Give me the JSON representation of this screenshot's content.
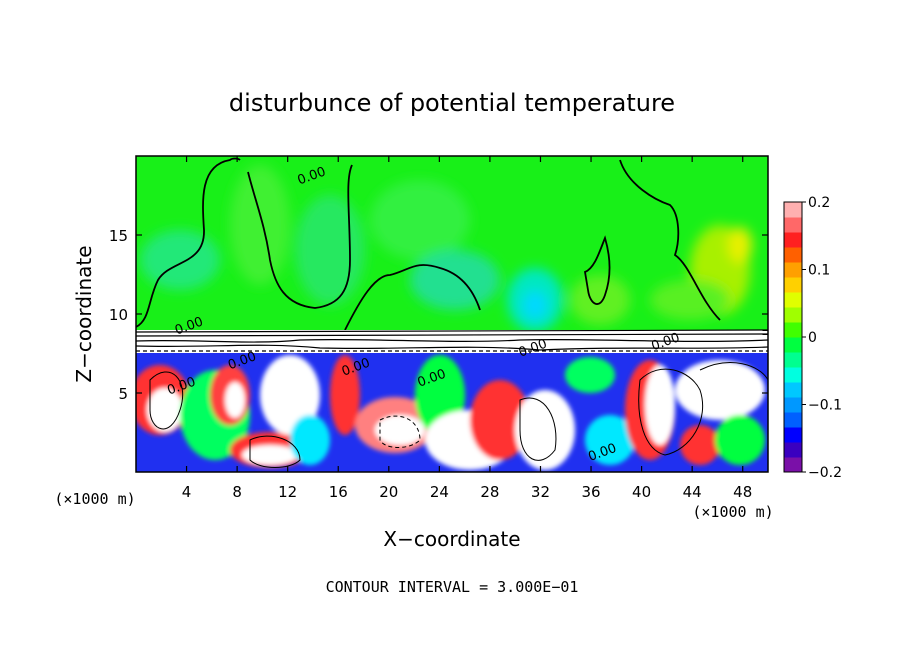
{
  "chart_data": {
    "type": "heatmap",
    "title": "disturbunce of potential temperature",
    "xlabel": "X−coordinate",
    "ylabel": "Z−coordinate",
    "x_unit_label": "(×1000 m)",
    "x_unit_label_right": "(×1000 m)",
    "footer": "CONTOUR INTERVAL = 3.000E−01",
    "xlim": [
      0,
      50
    ],
    "ylim": [
      0,
      20
    ],
    "x_ticks": [
      4,
      8,
      12,
      16,
      20,
      24,
      28,
      32,
      36,
      40,
      44,
      48
    ],
    "y_ticks": [
      5,
      10,
      15
    ],
    "contour_interval": 0.3,
    "contour_labels": [
      {
        "text": "0.00",
        "x": 14.0,
        "y": 18.5
      },
      {
        "text": "0.00",
        "x": 4.3,
        "y": 9.0
      },
      {
        "text": "0.00",
        "x": 8.5,
        "y": 6.8
      },
      {
        "text": "0.00",
        "x": 17.5,
        "y": 6.4
      },
      {
        "text": "0.00",
        "x": 3.7,
        "y": 5.2
      },
      {
        "text": "0.00",
        "x": 23.5,
        "y": 5.7
      },
      {
        "text": "0.00",
        "x": 31.5,
        "y": 7.6
      },
      {
        "text": "0.00",
        "x": 42.0,
        "y": 8.0
      },
      {
        "text": "0.00",
        "x": 37.0,
        "y": 1.0
      }
    ],
    "colorbar": {
      "min": -0.2,
      "max": 0.2,
      "tick_labels": [
        "0.2",
        "0.1",
        "0",
        "−0.1",
        "−0.2"
      ],
      "tick_values": [
        0.2,
        0.1,
        0,
        -0.1,
        -0.2
      ],
      "colors": [
        "#7a10a8",
        "#3a00c0",
        "#0000ff",
        "#0060ff",
        "#0098ff",
        "#00c8ff",
        "#00ffe0",
        "#00ff90",
        "#00ff40",
        "#40ff00",
        "#a0ff00",
        "#e0ff00",
        "#ffd000",
        "#ffa000",
        "#ff6000",
        "#ff2020",
        "#ff6868",
        "#ffb0b0"
      ]
    }
  }
}
